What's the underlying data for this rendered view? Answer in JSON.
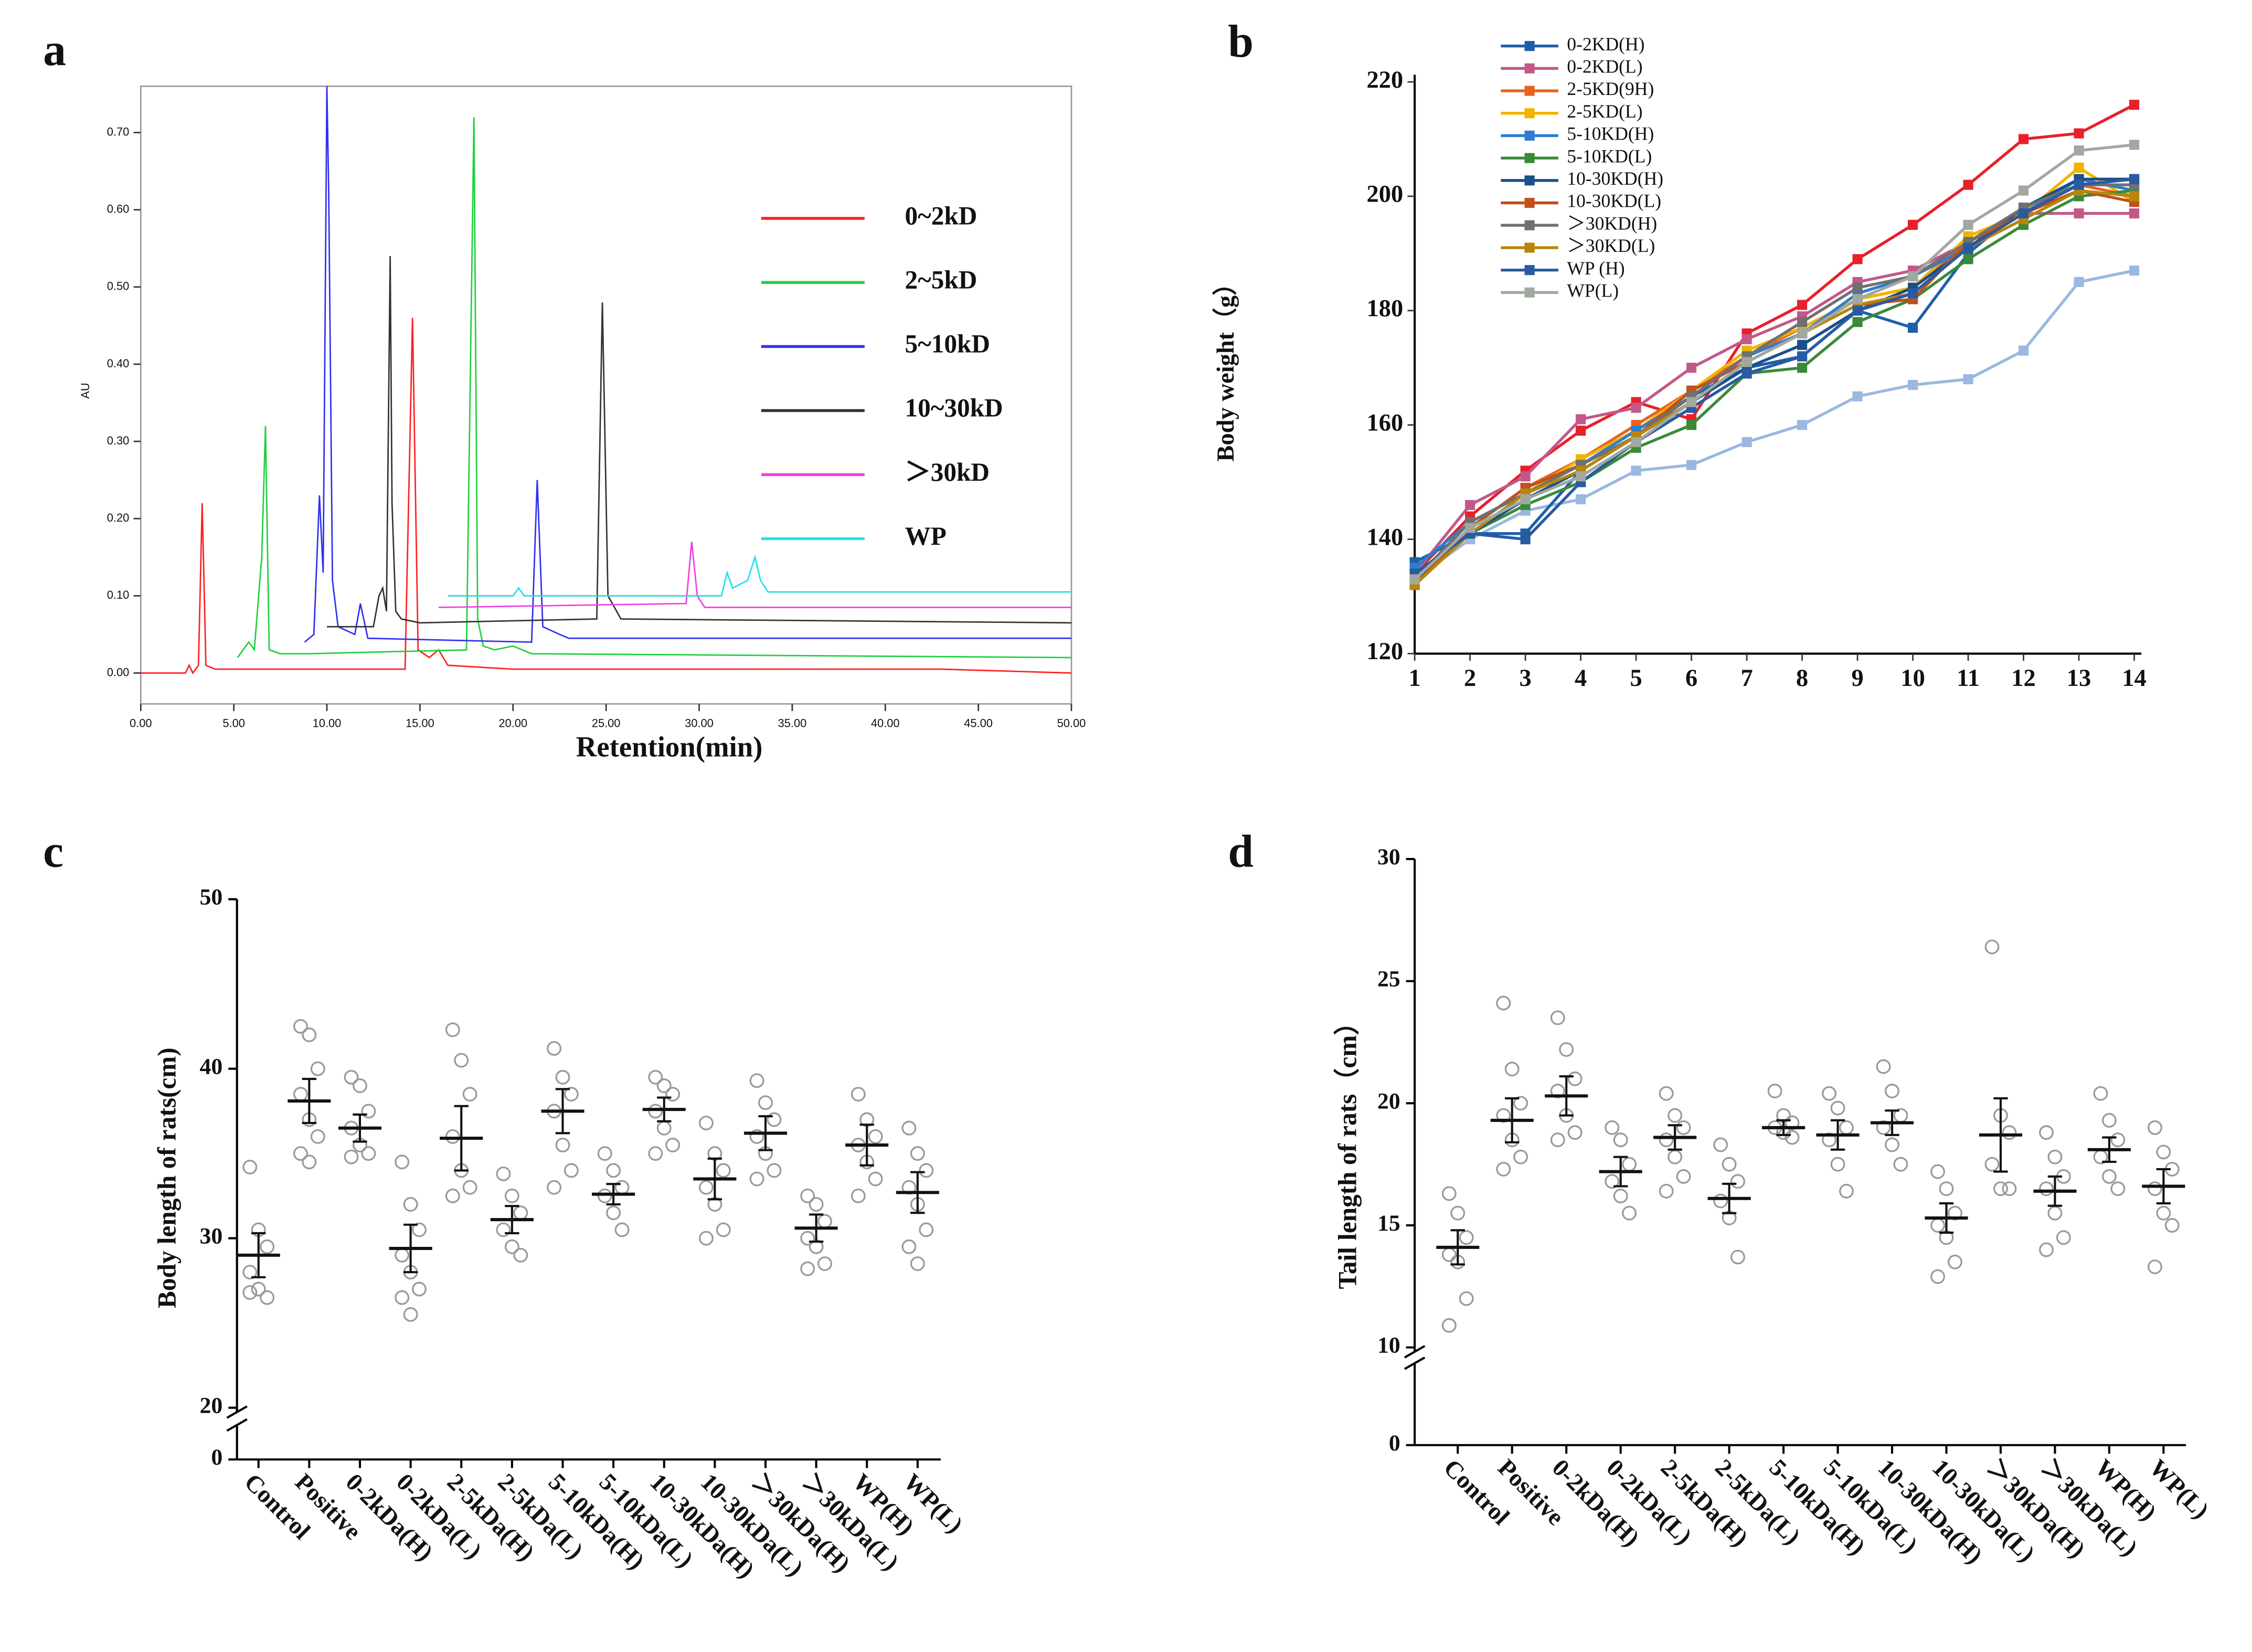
{
  "chart_data": [
    {
      "type": "line",
      "label": "a",
      "xlabel": "Retention(min)",
      "ylabel": "AU",
      "xlim": [
        0,
        50
      ],
      "ylim": [
        -0.04,
        0.76
      ],
      "xticks": [
        {
          "value": 0,
          "label": "0.00"
        },
        {
          "value": 5,
          "label": "5.00"
        },
        {
          "value": 10,
          "label": "10.00"
        },
        {
          "value": 15,
          "label": "15.00"
        },
        {
          "value": 20,
          "label": "20.00"
        },
        {
          "value": 25,
          "label": "25.00"
        },
        {
          "value": 30,
          "label": "30.00"
        },
        {
          "value": 35,
          "label": "35.00"
        },
        {
          "value": 40,
          "label": "40.00"
        },
        {
          "value": 45,
          "label": "45.00"
        },
        {
          "value": 50,
          "label": "50.00"
        }
      ],
      "yticks": [
        {
          "value": 0,
          "label": "0.00"
        },
        {
          "value": 0.1,
          "label": "0.10"
        },
        {
          "value": 0.2,
          "label": "0.20"
        },
        {
          "value": 0.3,
          "label": "0.30"
        },
        {
          "value": 0.4,
          "label": "0.40"
        },
        {
          "value": 0.5,
          "label": "0.50"
        },
        {
          "value": 0.6,
          "label": "0.60"
        },
        {
          "value": 0.7,
          "label": "0.70"
        }
      ],
      "series": [
        {
          "name": "0~2kD",
          "color": "#ff2020",
          "x": [
            0,
            2.4,
            2.6,
            2.8,
            3.1,
            3.3,
            3.5,
            4,
            14.2,
            14.6,
            14.9,
            15.5,
            16,
            16.5,
            20,
            43,
            50
          ],
          "values": [
            0,
            0,
            0.01,
            0,
            0.01,
            0.22,
            0.01,
            0.005,
            0.005,
            0.46,
            0.03,
            0.02,
            0.03,
            0.01,
            0.005,
            0.005,
            0
          ]
        },
        {
          "name": "2~5kD",
          "color": "#20d040",
          "x": [
            5.2,
            5.8,
            6.1,
            6.5,
            6.7,
            6.9,
            7.5,
            9,
            17.5,
            17.9,
            18.1,
            18.4,
            19,
            20,
            21,
            50
          ],
          "values": [
            0.02,
            0.04,
            0.03,
            0.15,
            0.32,
            0.03,
            0.025,
            0.025,
            0.03,
            0.72,
            0.07,
            0.035,
            0.03,
            0.035,
            0.025,
            0.02
          ]
        },
        {
          "name": "5~10kD",
          "color": "#3030f0",
          "x": [
            8.8,
            9.3,
            9.6,
            9.8,
            10.0,
            10.1,
            10.3,
            10.6,
            11.5,
            11.8,
            12.2,
            21,
            21.3,
            21.6,
            22.5,
            23,
            50
          ],
          "values": [
            0.04,
            0.05,
            0.23,
            0.13,
            0.76,
            0.62,
            0.12,
            0.06,
            0.05,
            0.09,
            0.045,
            0.04,
            0.25,
            0.06,
            0.05,
            0.045,
            0.045
          ]
        },
        {
          "name": "10~30kD",
          "color": "#333333",
          "x": [
            10,
            12.5,
            12.8,
            13.0,
            13.2,
            13.4,
            13.5,
            13.7,
            14,
            15,
            24.5,
            24.8,
            25.1,
            25.8,
            50
          ],
          "values": [
            0.06,
            0.06,
            0.1,
            0.11,
            0.08,
            0.54,
            0.22,
            0.08,
            0.07,
            0.065,
            0.07,
            0.48,
            0.1,
            0.07,
            0.065
          ]
        },
        {
          "name": "＞30kD",
          "color": "#f040e0",
          "x": [
            16,
            29.3,
            29.6,
            29.9,
            30.3,
            50
          ],
          "values": [
            0.085,
            0.09,
            0.17,
            0.1,
            0.085,
            0.085
          ]
        },
        {
          "name": "WP",
          "color": "#20e0e8",
          "x": [
            16.5,
            20,
            20.3,
            20.6,
            31.2,
            31.5,
            31.8,
            32.6,
            33,
            33.3,
            33.7,
            50
          ],
          "values": [
            0.1,
            0.1,
            0.11,
            0.1,
            0.1,
            0.13,
            0.11,
            0.12,
            0.15,
            0.12,
            0.105,
            0.105
          ]
        }
      ]
    },
    {
      "type": "line",
      "label": "b",
      "ylabel": "Body weight（g）",
      "x": [
        1,
        2,
        3,
        4,
        5,
        6,
        7,
        8,
        9,
        10,
        11,
        12,
        13,
        14
      ],
      "xlim": [
        1,
        14
      ],
      "xticks": [
        1,
        2,
        3,
        4,
        5,
        6,
        7,
        8,
        9,
        10,
        11,
        12,
        13,
        14
      ],
      "ylim": [
        120,
        220
      ],
      "yticks": [
        120,
        140,
        160,
        180,
        200,
        220
      ],
      "markers": true,
      "series": [
        {
          "color": "#e8202a",
          "values": [
            134,
            144,
            152,
            159,
            164,
            161,
            176,
            181,
            189,
            195,
            202,
            210,
            211,
            216
          ]
        },
        {
          "color": "#9ab8e0",
          "values": [
            133,
            140,
            145,
            147,
            152,
            153,
            157,
            160,
            165,
            167,
            168,
            173,
            185,
            187
          ]
        },
        {
          "name": "0-2KD(H)",
          "color": "#1f5fa8",
          "values": [
            136,
            141,
            141,
            152,
            158,
            165,
            170,
            172,
            180,
            177,
            190,
            198,
            202,
            202
          ]
        },
        {
          "name": "0-2KD(L)",
          "color": "#c2588a",
          "values": [
            134,
            146,
            151,
            161,
            163,
            170,
            175,
            179,
            185,
            187,
            192,
            197,
            197,
            197
          ]
        },
        {
          "name": "2-5KD(9H)",
          "color": "#e8641e",
          "values": [
            133,
            142,
            149,
            154,
            160,
            166,
            172,
            177,
            182,
            184,
            192,
            197,
            202,
            200
          ]
        },
        {
          "name": "2-5KD(L)",
          "color": "#f0b400",
          "values": [
            132,
            141,
            148,
            154,
            159,
            166,
            173,
            177,
            182,
            184,
            193,
            197,
            205,
            199
          ]
        },
        {
          "name": "5-10KD(H)",
          "color": "#2e7dd0",
          "values": [
            135,
            143,
            148,
            153,
            159,
            165,
            172,
            176,
            183,
            186,
            191,
            197,
            203,
            201
          ]
        },
        {
          "name": "5-10KD(L)",
          "color": "#3a8a3a",
          "values": [
            133,
            141,
            146,
            150,
            156,
            160,
            169,
            170,
            178,
            182,
            189,
            195,
            200,
            201
          ]
        },
        {
          "name": "10-30KD(H)",
          "color": "#1a4f8a",
          "values": [
            133,
            141,
            147,
            152,
            158,
            164,
            170,
            174,
            180,
            184,
            191,
            198,
            203,
            203
          ]
        },
        {
          "name": "10-30KD(L)",
          "color": "#c0501e",
          "values": [
            132,
            142,
            149,
            153,
            158,
            166,
            171,
            176,
            181,
            182,
            192,
            197,
            201,
            199
          ]
        },
        {
          "name": "＞30KD(H)",
          "color": "#707070",
          "values": [
            133,
            143,
            148,
            153,
            158,
            165,
            172,
            178,
            184,
            186,
            192,
            198,
            202,
            202
          ]
        },
        {
          "name": "＞30KD(L)",
          "color": "#b8860b",
          "values": [
            132,
            141,
            148,
            152,
            158,
            164,
            171,
            176,
            181,
            183,
            191,
            196,
            201,
            200
          ]
        },
        {
          "name": "WP  (H)",
          "color": "#2a5aa0",
          "values": [
            134,
            141,
            140,
            150,
            157,
            163,
            169,
            172,
            180,
            183,
            191,
            197,
            202,
            203
          ]
        },
        {
          "name": "WP(L)",
          "color": "#a0a8a0",
          "values": [
            133,
            142,
            147,
            151,
            157,
            164,
            171,
            176,
            182,
            186,
            195,
            201,
            208,
            209
          ]
        }
      ]
    },
    {
      "type": "dotplot",
      "label": "c",
      "ylabel": "Body length of rats(cm)",
      "ylim": [
        0,
        50
      ],
      "ybreak": 20,
      "yticks": [
        0,
        20,
        30,
        40,
        50
      ],
      "categories": [
        "Control",
        "Positive",
        "0-2kDa(H)",
        "0-2kDa(L)",
        "2-5kDa(H)",
        "2-5kDa(L)",
        "5-10kDa(H)",
        "5-10kDa(L)",
        "10-30kDa(H)",
        "10-30kDa(L)",
        "＞30kDa(H)",
        "＞30kDa(L)",
        "WP(H)",
        "WP(L)"
      ],
      "values": [
        29,
        38.1,
        36.5,
        29.4,
        35.9,
        31.1,
        37.5,
        32.6,
        37.6,
        33.5,
        36.2,
        30.6,
        35.5,
        32.7
      ],
      "errors": [
        1.3,
        1.3,
        0.8,
        1.4,
        1.9,
        0.8,
        1.3,
        0.6,
        0.7,
        1.2,
        1.0,
        0.8,
        1.2,
        1.2
      ],
      "points": [
        [
          34.2,
          30.5,
          29.5,
          28,
          27,
          26.5,
          26.8
        ],
        [
          42.5,
          42,
          40,
          38.5,
          37,
          36,
          35,
          34.5
        ],
        [
          39.5,
          39,
          37.5,
          36.5,
          35.5,
          35,
          34.8
        ],
        [
          34.5,
          32,
          30.5,
          29,
          28,
          27,
          26.5,
          25.5
        ],
        [
          42.3,
          40.5,
          38.5,
          36,
          34,
          33,
          32.5
        ],
        [
          33.8,
          32.5,
          31.5,
          30.5,
          29.5,
          29
        ],
        [
          41.2,
          39.5,
          38.5,
          37.5,
          35.5,
          34,
          33
        ],
        [
          35,
          34,
          33,
          32.5,
          31.5,
          30.5
        ],
        [
          39.5,
          39,
          38.5,
          37.5,
          36.5,
          35.5,
          35
        ],
        [
          36.8,
          35,
          34,
          33,
          32,
          30.5,
          30
        ],
        [
          39.3,
          38,
          37,
          36,
          35,
          34,
          33.5
        ],
        [
          32.5,
          32,
          31,
          30,
          29.5,
          28.5,
          28.2
        ],
        [
          38.5,
          37,
          36,
          35.5,
          34.5,
          33.5,
          32.5
        ],
        [
          36.5,
          35,
          34,
          33,
          32,
          30.5,
          29.5,
          28.5
        ]
      ]
    },
    {
      "type": "dotplot",
      "label": "d",
      "ylabel": "Tail length of rats（cm）",
      "ylim": [
        0,
        30
      ],
      "ybreak": 10,
      "yticks": [
        0,
        10,
        15,
        20,
        25,
        30
      ],
      "categories": [
        "Control",
        "Positive",
        "0-2kDa(H)",
        "0-2kDa(L)",
        "2-5kDa(H)",
        "2-5kDa(L)",
        "5-10kDa(H)",
        "5-10kDa(L)",
        "10-30kDa(H)",
        "10-30kDa(L)",
        "＞30kDa(H)",
        "＞30kDa(L)",
        "WP(H)",
        "WP(L)"
      ],
      "values": [
        14.1,
        19.3,
        20.3,
        17.2,
        18.6,
        16.1,
        19.0,
        18.7,
        19.2,
        15.3,
        18.7,
        16.4,
        18.1,
        16.6
      ],
      "errors": [
        0.7,
        0.9,
        0.8,
        0.6,
        0.5,
        0.6,
        0.3,
        0.6,
        0.5,
        0.6,
        1.5,
        0.6,
        0.5,
        0.7
      ],
      "points": [
        [
          16.3,
          15.5,
          14.5,
          13.8,
          13.5,
          12,
          10.9
        ],
        [
          24.1,
          21.4,
          20,
          19.5,
          18.5,
          17.8,
          17.3
        ],
        [
          23.5,
          22.2,
          21,
          20.5,
          19.5,
          18.8,
          18.5
        ],
        [
          19,
          18.5,
          17.5,
          16.8,
          16.2,
          15.5
        ],
        [
          20.4,
          19.5,
          19,
          18.5,
          17.8,
          17,
          16.4
        ],
        [
          18.3,
          17.5,
          16.8,
          16,
          15.3,
          13.7
        ],
        [
          20.5,
          19.5,
          19.2,
          19,
          18.8,
          18.6
        ],
        [
          20.4,
          19.8,
          19,
          18.5,
          17.5,
          16.4
        ],
        [
          21.5,
          20.5,
          19.5,
          19,
          18.3,
          17.5
        ],
        [
          17.2,
          16.5,
          15.5,
          15,
          14.5,
          13.5,
          12.9
        ],
        [
          26.4,
          19.5,
          18.8,
          17.5,
          16.5,
          16.5
        ],
        [
          18.8,
          17.8,
          17,
          16.5,
          15.5,
          14.5,
          14
        ],
        [
          20.4,
          19.3,
          18.5,
          17.8,
          17,
          16.5
        ],
        [
          19,
          18,
          17.3,
          16.5,
          15.5,
          15,
          13.3
        ]
      ]
    }
  ]
}
